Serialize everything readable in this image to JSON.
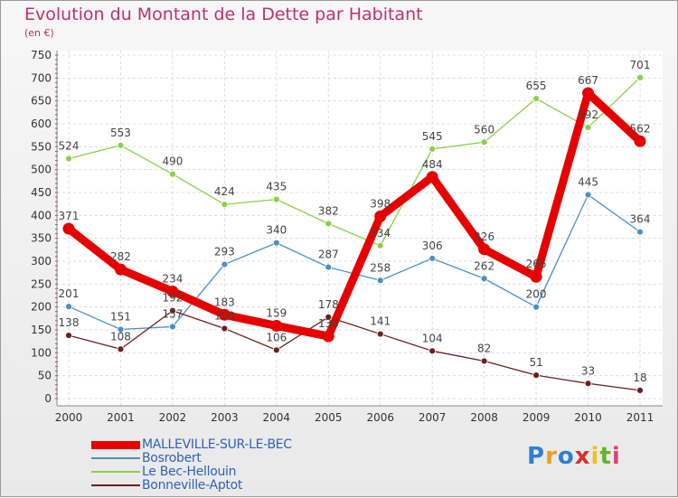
{
  "title": "Evolution du Montant de la Dette par Habitant",
  "subtitle": "(en €)",
  "logo": {
    "text": "Proxiti",
    "colors": [
      "#2f7fd0",
      "#e8a020",
      "#2f7fd0",
      "#d83030",
      "#f0c020",
      "#6ab030",
      "#e04080"
    ]
  },
  "chart_data": {
    "type": "line",
    "x": [
      "2000",
      "2001",
      "2002",
      "2003",
      "2004",
      "2005",
      "2006",
      "2007",
      "2008",
      "2009",
      "2010",
      "2011"
    ],
    "ylim": [
      0,
      750
    ],
    "yticks": [
      0,
      50,
      100,
      150,
      200,
      250,
      300,
      350,
      400,
      450,
      500,
      550,
      600,
      650,
      700,
      750
    ],
    "grid": true,
    "legend_position": "bottom-left",
    "series": [
      {
        "name": "MALLEVILLE-SUR-LE-BEC",
        "color": "#e60000",
        "values": [
          371,
          282,
          234,
          183,
          159,
          136,
          398,
          484,
          326,
          266,
          667,
          562
        ]
      },
      {
        "name": "Bosrobert",
        "color": "#4a90c8",
        "values": [
          201,
          151,
          157,
          293,
          340,
          287,
          258,
          306,
          262,
          200,
          445,
          364
        ]
      },
      {
        "name": "Le Bec-Hellouin",
        "color": "#8ccf4a",
        "values": [
          524,
          553,
          490,
          424,
          435,
          382,
          334,
          545,
          560,
          655,
          592,
          701
        ]
      },
      {
        "name": "Bonneville-Aptot",
        "color": "#6b1f1f",
        "values": [
          138,
          108,
          192,
          153,
          106,
          178,
          141,
          104,
          82,
          51,
          33,
          18
        ]
      }
    ]
  }
}
